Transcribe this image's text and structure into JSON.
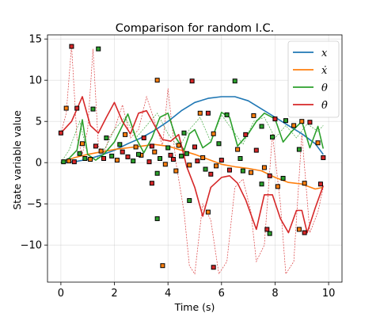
{
  "chart_data": {
    "type": "line",
    "title": "Comparison for random I.C.",
    "xlabel": "Time (s)",
    "ylabel": "State variable value",
    "xlim": [
      -0.5,
      10.5
    ],
    "ylim": [
      -14.5,
      15.5
    ],
    "xticks": [
      0,
      2,
      4,
      6,
      8,
      10
    ],
    "yticks": [
      -10,
      -5,
      0,
      5,
      10,
      15
    ],
    "grid": true,
    "legend": {
      "position": "top-right"
    },
    "colors": {
      "x": "#1f77b4",
      "x_dot": "#ff7f0e",
      "theta": "#2ca02c",
      "theta_dot": "#d62728",
      "marker_edge": "#000000"
    },
    "series": [
      {
        "name": "x",
        "legend_label": "x",
        "color": "#1f77b4",
        "x": [
          0,
          0.5,
          1,
          1.5,
          2,
          2.5,
          3,
          3.5,
          4,
          4.5,
          5,
          5.5,
          6,
          6.5,
          7,
          7.5,
          8,
          8.5,
          9,
          9.5,
          9.8
        ],
        "y": [
          0.0,
          0.1,
          0.4,
          0.9,
          1.5,
          2.3,
          3.0,
          3.9,
          5.0,
          6.3,
          7.3,
          7.8,
          8.0,
          8.0,
          7.5,
          6.5,
          5.5,
          4.5,
          3.5,
          2.3,
          1.0
        ]
      },
      {
        "name": "x_dot",
        "legend_label": "ẋ",
        "color": "#ff7f0e",
        "x": [
          0,
          0.5,
          1,
          1.5,
          2,
          2.5,
          3,
          3.5,
          4,
          4.5,
          5,
          5.5,
          6,
          6.5,
          7,
          7.5,
          8,
          8.5,
          9,
          9.5,
          9.8
        ],
        "y": [
          0.0,
          0.6,
          1.0,
          1.3,
          1.6,
          1.8,
          2.0,
          2.2,
          2.0,
          1.5,
          1.0,
          0.4,
          -0.2,
          -0.5,
          -0.7,
          -1.0,
          -1.8,
          -2.4,
          -2.6,
          -3.2,
          -3.0
        ]
      },
      {
        "name": "theta",
        "legend_label": "θ",
        "color": "#2ca02c",
        "x": [
          0,
          0.3,
          0.6,
          0.8,
          1.0,
          1.3,
          1.6,
          2.0,
          2.3,
          2.5,
          2.8,
          3.1,
          3.4,
          3.7,
          4.0,
          4.3,
          4.6,
          4.8,
          5.0,
          5.3,
          5.6,
          6.0,
          6.3,
          6.6,
          7.0,
          7.3,
          7.6,
          8.0,
          8.3,
          8.6,
          9.0,
          9.3,
          9.6,
          9.8
        ],
        "y": [
          0.0,
          0.5,
          1.5,
          5.2,
          1.0,
          0.3,
          1.0,
          2.5,
          4.5,
          5.9,
          3.0,
          1.2,
          3.0,
          5.5,
          6.0,
          3.0,
          1.5,
          3.5,
          4.0,
          1.8,
          2.5,
          6.1,
          5.5,
          2.0,
          3.5,
          5.0,
          6.0,
          5.3,
          2.5,
          3.7,
          5.0,
          1.8,
          4.4,
          1.7
        ]
      },
      {
        "name": "theta_dot",
        "legend_label": "θ̇",
        "color": "#d62728",
        "x": [
          0,
          0.4,
          0.8,
          1.1,
          1.4,
          1.7,
          2.0,
          2.3,
          2.6,
          2.9,
          3.2,
          3.5,
          3.8,
          4.1,
          4.4,
          4.7,
          5.0,
          5.3,
          5.6,
          6.0,
          6.3,
          6.6,
          6.9,
          7.3,
          7.6,
          7.9,
          8.2,
          8.5,
          8.8,
          9.0,
          9.2,
          9.5,
          9.8
        ],
        "y": [
          3.6,
          5.0,
          8.0,
          4.5,
          3.6,
          5.5,
          7.3,
          5.0,
          3.5,
          6.0,
          6.3,
          4.5,
          2.8,
          2.6,
          3.4,
          -0.5,
          -3.0,
          -6.5,
          -3.0,
          -1.8,
          -1.6,
          -2.5,
          -4.5,
          -8.1,
          -3.9,
          -3.9,
          -6.8,
          -8.5,
          -5.8,
          -5.8,
          -8.5,
          -5.5,
          -2.8
        ]
      }
    ],
    "scatter_points": [
      {
        "x": 0.4,
        "y": 14.1
      },
      {
        "x": 1.4,
        "y": 13.8
      },
      {
        "x": 0.2,
        "y": 6.6
      },
      {
        "x": 0.6,
        "y": 6.6
      },
      {
        "x": 1.2,
        "y": 6.5
      },
      {
        "x": 3.6,
        "y": 10.0
      },
      {
        "x": 4.9,
        "y": 9.9
      },
      {
        "x": 6.5,
        "y": 9.9
      },
      {
        "x": 5.2,
        "y": 6.0
      },
      {
        "x": 5.5,
        "y": 6.0
      },
      {
        "x": 6.2,
        "y": 5.8
      },
      {
        "x": 7.2,
        "y": 5.7
      },
      {
        "x": 8.0,
        "y": 5.3
      },
      {
        "x": 8.4,
        "y": 5.1
      },
      {
        "x": 9.0,
        "y": 5.0
      },
      {
        "x": 9.3,
        "y": 4.9
      },
      {
        "x": 7.5,
        "y": 4.4
      },
      {
        "x": 8.7,
        "y": 4.5
      },
      {
        "x": 0.0,
        "y": 3.6
      },
      {
        "x": 1.7,
        "y": 3.0
      },
      {
        "x": 2.4,
        "y": 3.4
      },
      {
        "x": 3.1,
        "y": 3.0
      },
      {
        "x": 4.6,
        "y": 3.6
      },
      {
        "x": 5.7,
        "y": 3.5
      },
      {
        "x": 6.9,
        "y": 3.4
      },
      {
        "x": 7.9,
        "y": 3.1
      },
      {
        "x": 0.8,
        "y": 2.3
      },
      {
        "x": 1.3,
        "y": 2.0
      },
      {
        "x": 2.2,
        "y": 2.2
      },
      {
        "x": 2.8,
        "y": 1.9
      },
      {
        "x": 3.4,
        "y": 2.0
      },
      {
        "x": 4.0,
        "y": 1.8
      },
      {
        "x": 4.4,
        "y": 2.1
      },
      {
        "x": 5.0,
        "y": 1.9
      },
      {
        "x": 5.9,
        "y": 2.3
      },
      {
        "x": 6.6,
        "y": 1.6
      },
      {
        "x": 7.3,
        "y": 1.5
      },
      {
        "x": 8.9,
        "y": 1.6
      },
      {
        "x": 9.6,
        "y": 2.4
      },
      {
        "x": 9.8,
        "y": 0.6
      },
      {
        "x": 0.1,
        "y": 0.1
      },
      {
        "x": 0.3,
        "y": 0.2
      },
      {
        "x": 0.5,
        "y": 0.1
      },
      {
        "x": 0.9,
        "y": 0.5
      },
      {
        "x": 1.1,
        "y": 0.4
      },
      {
        "x": 1.6,
        "y": 0.5
      },
      {
        "x": 1.9,
        "y": 0.8
      },
      {
        "x": 2.1,
        "y": 0.3
      },
      {
        "x": 2.5,
        "y": 0.7
      },
      {
        "x": 2.7,
        "y": 0.2
      },
      {
        "x": 3.0,
        "y": 0.9
      },
      {
        "x": 3.3,
        "y": 0.1
      },
      {
        "x": 3.7,
        "y": 0.5
      },
      {
        "x": 3.9,
        "y": -0.2
      },
      {
        "x": 4.2,
        "y": 0.4
      },
      {
        "x": 4.5,
        "y": 0.8
      },
      {
        "x": 4.8,
        "y": -0.3
      },
      {
        "x": 5.1,
        "y": 0.2
      },
      {
        "x": 5.4,
        "y": -0.8
      },
      {
        "x": 5.8,
        "y": -0.4
      },
      {
        "x": 6.3,
        "y": -0.9
      },
      {
        "x": 6.8,
        "y": -1.0
      },
      {
        "x": 7.1,
        "y": -1.2
      },
      {
        "x": 7.8,
        "y": -1.6
      },
      {
        "x": 8.3,
        "y": -1.9
      },
      {
        "x": 9.1,
        "y": -2.5
      },
      {
        "x": 9.7,
        "y": -2.6
      },
      {
        "x": 0.7,
        "y": 1.1
      },
      {
        "x": 1.5,
        "y": 1.4
      },
      {
        "x": 2.3,
        "y": 1.3
      },
      {
        "x": 2.9,
        "y": 1.0
      },
      {
        "x": 3.5,
        "y": 1.3
      },
      {
        "x": 4.1,
        "y": 0.9
      },
      {
        "x": 4.7,
        "y": 1.1
      },
      {
        "x": 5.3,
        "y": 0.6
      },
      {
        "x": 6.0,
        "y": 0.3
      },
      {
        "x": 6.7,
        "y": 0.5
      },
      {
        "x": 7.6,
        "y": -0.6
      },
      {
        "x": 3.4,
        "y": -2.5
      },
      {
        "x": 3.6,
        "y": -1.3
      },
      {
        "x": 4.3,
        "y": -1.0
      },
      {
        "x": 5.6,
        "y": -1.4
      },
      {
        "x": 3.6,
        "y": -6.8
      },
      {
        "x": 3.8,
        "y": -12.5
      },
      {
        "x": 5.7,
        "y": -12.7
      },
      {
        "x": 4.8,
        "y": -4.6
      },
      {
        "x": 5.5,
        "y": -6.0
      },
      {
        "x": 7.7,
        "y": -8.1
      },
      {
        "x": 7.8,
        "y": -8.6
      },
      {
        "x": 8.9,
        "y": -8.1
      },
      {
        "x": 9.1,
        "y": -8.5
      },
      {
        "x": 7.5,
        "y": -2.6
      },
      {
        "x": 8.1,
        "y": -2.9
      }
    ],
    "reference_series_dashed": [
      {
        "color": "#d62728",
        "x": [
          0,
          0.2,
          0.4,
          0.6,
          0.8,
          1.0,
          1.2,
          1.4,
          1.6,
          1.8,
          2.0,
          2.3,
          2.6,
          2.9,
          3.2,
          3.5,
          3.8,
          4.0,
          4.3,
          4.6,
          4.8,
          5.0,
          5.3,
          5.6,
          5.9,
          6.2,
          6.5,
          6.8,
          7.1,
          7.3,
          7.6,
          7.9,
          8.2,
          8.4,
          8.7,
          9.0,
          9.3,
          9.6,
          9.8
        ],
        "y": [
          3.5,
          6.0,
          14.2,
          3.0,
          1.0,
          4.0,
          13.8,
          2.0,
          1.0,
          3.0,
          4.0,
          7.0,
          3.0,
          4.0,
          8.0,
          5.0,
          2.0,
          9.0,
          0.0,
          -6.0,
          -12.5,
          -13.5,
          -5.0,
          -7.0,
          -13.5,
          -12.0,
          -3.0,
          -2.0,
          -6.0,
          -12.0,
          -10.0,
          3.5,
          -5.0,
          -13.5,
          -12.0,
          3.5,
          -8.5,
          -6.0,
          -3.0
        ]
      },
      {
        "color": "#2ca02c",
        "x": [
          0,
          0.3,
          0.7,
          1.0,
          1.3,
          1.7,
          2.0,
          2.4,
          2.8,
          3.2,
          3.6,
          4.0,
          4.4,
          4.8,
          5.2,
          5.6,
          6.0,
          6.4,
          6.8,
          7.2,
          7.6,
          8.0,
          8.4,
          8.8,
          9.2,
          9.6,
          9.8
        ],
        "y": [
          0,
          1.5,
          5.0,
          1.0,
          0.3,
          2.0,
          4.0,
          5.5,
          3.0,
          4.5,
          6.0,
          3.5,
          1.8,
          4.0,
          5.5,
          2.5,
          5.8,
          4.0,
          2.2,
          5.0,
          5.5,
          3.0,
          4.5,
          3.0,
          4.7,
          3.8,
          4.5
        ]
      }
    ]
  }
}
